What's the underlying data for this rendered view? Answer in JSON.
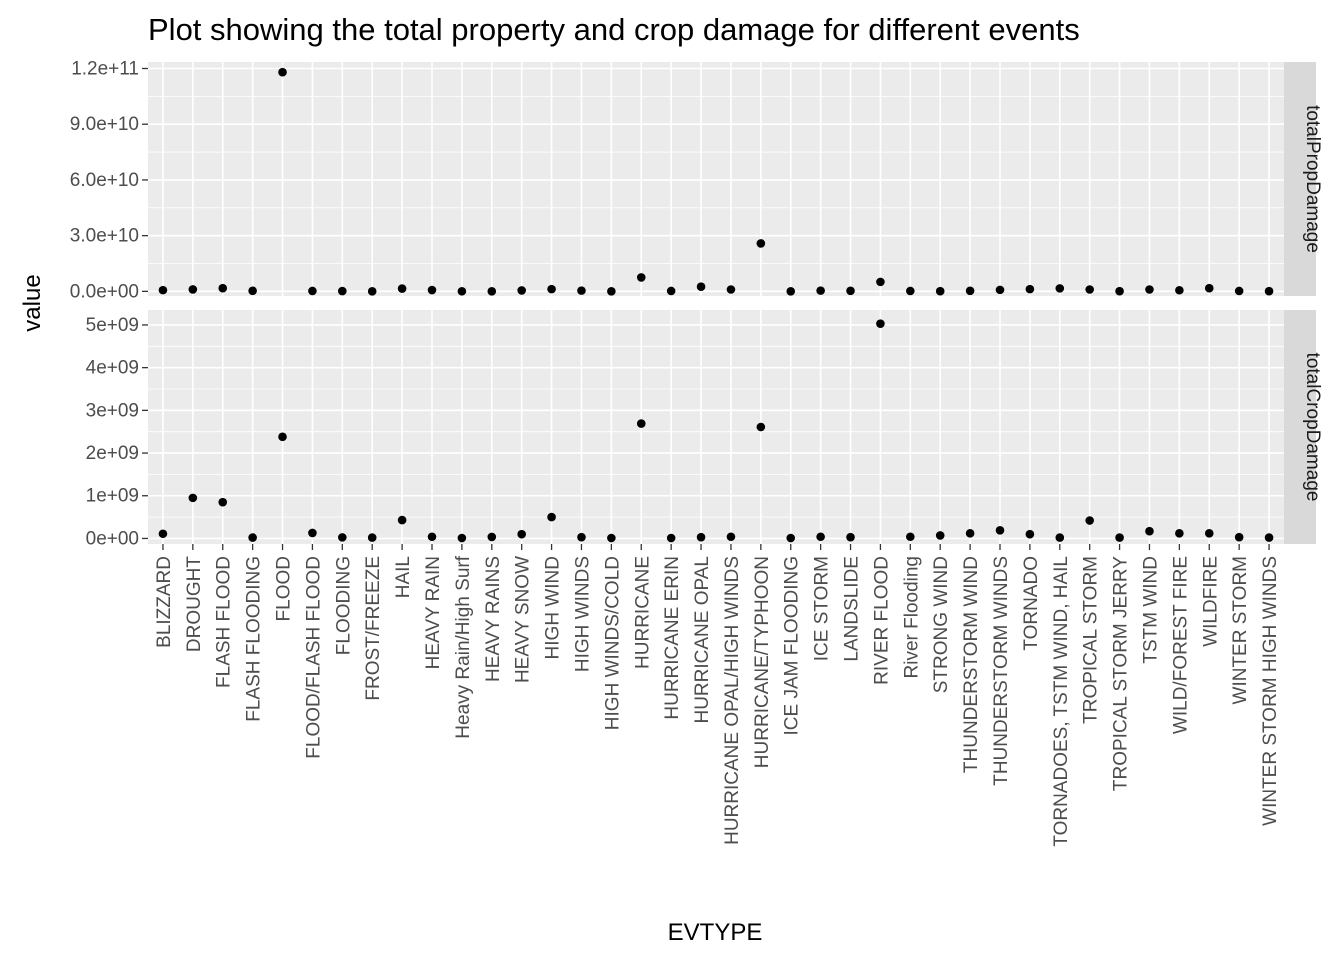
{
  "chart_data": {
    "type": "scatter",
    "title": "Plot showing the total property and crop damage for different events",
    "xlabel": "EVTYPE",
    "ylabel": "value",
    "grid": true,
    "legend": "none",
    "colors": {
      "panel": "#ebebeb",
      "grid_major": "#ffffff",
      "strip": "#d9d9d9",
      "point": "#000000",
      "tick_text": "#4d4d4d"
    },
    "categories": [
      "BLIZZARD",
      "DROUGHT",
      "FLASH FLOOD",
      "FLASH FLOODING",
      "FLOOD",
      "FLOOD/FLASH FLOOD",
      "FLOODING",
      "FROST/FREEZE",
      "HAIL",
      "HEAVY RAIN",
      "Heavy Rain/High Surf",
      "HEAVY RAINS",
      "HEAVY SNOW",
      "HIGH WIND",
      "HIGH WINDS",
      "HIGH WINDS/COLD",
      "HURRICANE",
      "HURRICANE ERIN",
      "HURRICANE OPAL",
      "HURRICANE OPAL/HIGH WINDS",
      "HURRICANE/TYPHOON",
      "ICE JAM FLOODING",
      "ICE STORM",
      "LANDSLIDE",
      "RIVER FLOOD",
      "River Flooding",
      "STRONG WIND",
      "THUNDERSTORM WIND",
      "THUNDERSTORM WINDS",
      "TORNADO",
      "TORNADOES, TSTM WIND, HAIL",
      "TROPICAL STORM",
      "TROPICAL STORM JERRY",
      "TSTM WIND",
      "WILD/FOREST FIRE",
      "WILDFIRE",
      "WINTER STORM",
      "WINTER STORM HIGH WINDS"
    ],
    "facets": [
      {
        "name": "totalPropDamage",
        "ylim": [
          -2500000000,
          123500000000
        ],
        "yticks": [
          0,
          30000000000,
          60000000000,
          90000000000,
          120000000000
        ],
        "ytick_labels": [
          "0.0e+00",
          "3.0e+10",
          "6.0e+10",
          "9.0e+10",
          "1.2e+11"
        ],
        "values": [
          660000000,
          1050000000,
          1700000000,
          300000000,
          118000000000,
          200000000,
          150000000,
          10000000,
          1500000000,
          700000000,
          50000000,
          30000000,
          500000000,
          1200000000,
          400000000,
          5000000,
          7500000000,
          200000000,
          2500000000,
          1000000000,
          25800000000,
          5000000,
          400000000,
          300000000,
          5100000000,
          200000000,
          100000000,
          300000000,
          800000000,
          1200000000,
          1600000000,
          1000000000,
          100000000,
          1000000000,
          600000000,
          1700000000,
          200000000,
          100000000
        ]
      },
      {
        "name": "totalCropDamage",
        "ylim": [
          -130000000,
          5350000000
        ],
        "yticks": [
          0,
          1000000000,
          2000000000,
          3000000000,
          4000000000,
          5000000000
        ],
        "ytick_labels": [
          "0e+00",
          "1e+09",
          "2e+09",
          "3e+09",
          "4e+09",
          "5e+09"
        ],
        "values": [
          110000000,
          950000000,
          850000000,
          20000000,
          2380000000,
          130000000,
          25000000,
          20000000,
          430000000,
          40000000,
          10000000,
          35000000,
          100000000,
          500000000,
          30000000,
          10000000,
          2690000000,
          10000000,
          30000000,
          40000000,
          2610000000,
          10000000,
          40000000,
          30000000,
          5030000000,
          40000000,
          70000000,
          120000000,
          190000000,
          100000000,
          20000000,
          420000000,
          20000000,
          170000000,
          120000000,
          120000000,
          30000000,
          20000000
        ]
      }
    ]
  }
}
